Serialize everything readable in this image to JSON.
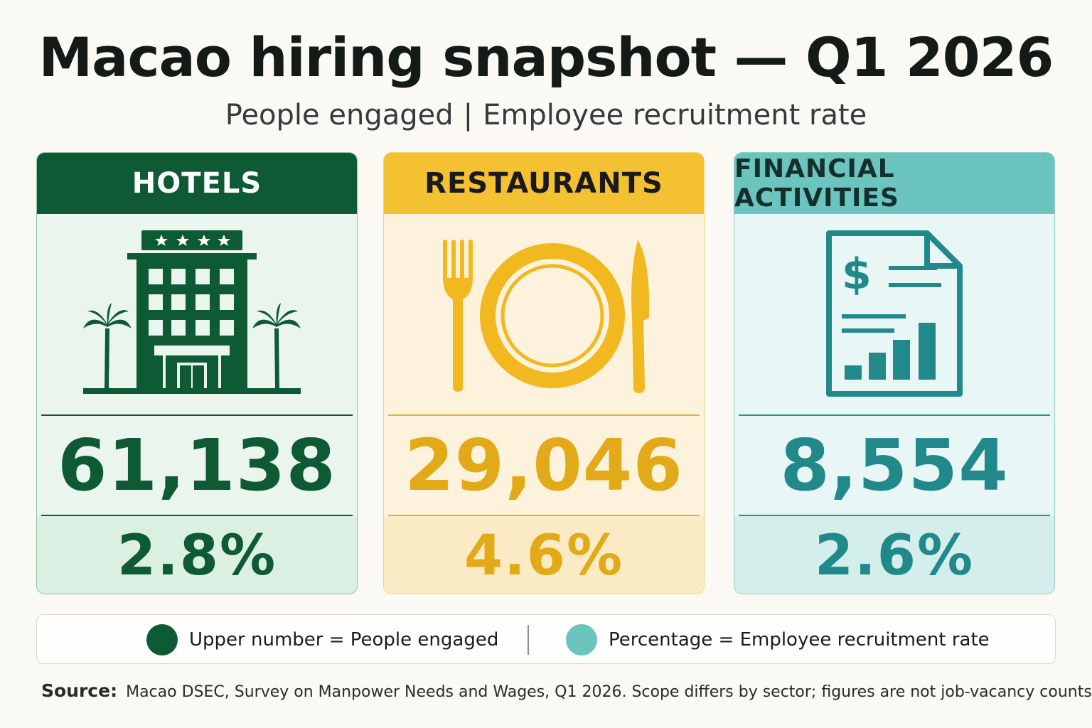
{
  "title": "Macao hiring snapshot — Q1 2026",
  "subtitle": {
    "left": "People engaged",
    "separator": "|",
    "right": "Employee recruitment rate"
  },
  "cards": [
    {
      "name": "HOTELS",
      "icon": "hotel-building-with-palm-trees-icon",
      "people_engaged": "61,138",
      "recruitment_rate": "2.8%",
      "color": "#0d5a34"
    },
    {
      "name": "RESTAURANTS",
      "icon": "fork-plate-knife-icon",
      "people_engaged": "29,046",
      "recruitment_rate": "4.6%",
      "color": "#f4c132"
    },
    {
      "name": "FINANCIAL ACTIVITIES",
      "icon": "financial-document-with-bar-chart-icon",
      "people_engaged": "8,554",
      "recruitment_rate": "2.6%",
      "color": "#6cc4bf"
    }
  ],
  "legend": {
    "items": [
      {
        "label": "Upper number = People engaged",
        "color": "#0d5a34"
      },
      {
        "label": "Percentage = Employee recruitment rate",
        "color": "#6cc4bf"
      }
    ]
  },
  "source": {
    "label": "Source:",
    "text": "Macao DSEC, Survey on Manpower Needs and Wages, Q1 2026. Scope differs by sector; figures are not job-vacancy counts."
  }
}
